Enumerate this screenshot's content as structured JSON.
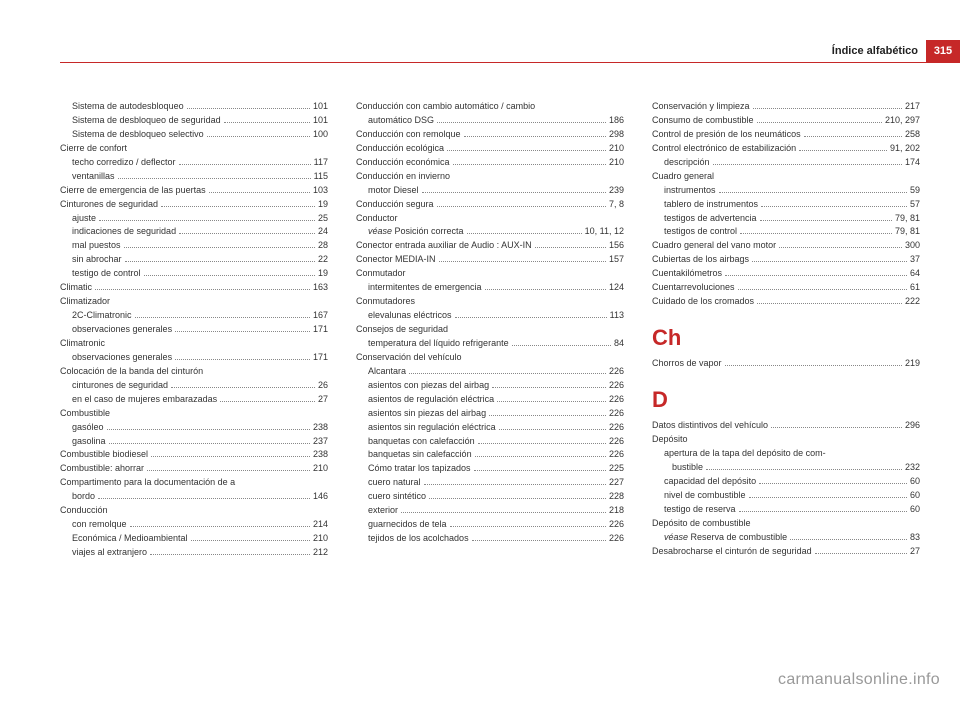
{
  "header": {
    "title": "Índice alfabético",
    "page_number": "315"
  },
  "watermark": "carmanualsonline.info",
  "colors": {
    "accent": "#c62828",
    "text": "#333333",
    "muted": "#999999",
    "background": "#ffffff"
  },
  "columns": [
    {
      "items": [
        {
          "t": "sub",
          "label": "Sistema de autodesbloqueo",
          "page": "101"
        },
        {
          "t": "sub",
          "label": "Sistema de desbloqueo de seguridad",
          "page": "101"
        },
        {
          "t": "sub",
          "label": "Sistema de desbloqueo selectivo",
          "page": "100"
        },
        {
          "t": "top",
          "label": "Cierre de confort"
        },
        {
          "t": "sub",
          "label": "techo corredizo / deflector",
          "page": "117"
        },
        {
          "t": "sub",
          "label": "ventanillas",
          "page": "115"
        },
        {
          "t": "top",
          "label": "Cierre de emergencia de las puertas",
          "page": "103"
        },
        {
          "t": "top",
          "label": "Cinturones de seguridad",
          "page": "19"
        },
        {
          "t": "sub",
          "label": "ajuste",
          "page": "25"
        },
        {
          "t": "sub",
          "label": "indicaciones de seguridad",
          "page": "24"
        },
        {
          "t": "sub",
          "label": "mal puestos",
          "page": "28"
        },
        {
          "t": "sub",
          "label": "sin abrochar",
          "page": "22"
        },
        {
          "t": "sub",
          "label": "testigo de control",
          "page": "19"
        },
        {
          "t": "top",
          "label": "Climatic",
          "page": "163"
        },
        {
          "t": "top",
          "label": "Climatizador"
        },
        {
          "t": "sub",
          "label": "2C-Climatronic",
          "page": "167"
        },
        {
          "t": "sub",
          "label": "observaciones generales",
          "page": "171"
        },
        {
          "t": "top",
          "label": "Climatronic"
        },
        {
          "t": "sub",
          "label": "observaciones generales",
          "page": "171"
        },
        {
          "t": "top",
          "label": "Colocación de la banda del cinturón"
        },
        {
          "t": "sub",
          "label": "cinturones de seguridad",
          "page": "26"
        },
        {
          "t": "sub",
          "label": "en el caso de mujeres embarazadas",
          "page": "27"
        },
        {
          "t": "top",
          "label": "Combustible"
        },
        {
          "t": "sub",
          "label": "gasóleo",
          "page": "238"
        },
        {
          "t": "sub",
          "label": "gasolina",
          "page": "237"
        },
        {
          "t": "top",
          "label": "Combustible biodiesel",
          "page": "238"
        },
        {
          "t": "top",
          "label": "Combustible: ahorrar",
          "page": "210"
        },
        {
          "t": "top",
          "label": "Compartimento para la documentación de a"
        },
        {
          "t": "sub",
          "label": "bordo",
          "page": "146",
          "cont": true
        },
        {
          "t": "top",
          "label": "Conducción"
        },
        {
          "t": "sub",
          "label": "con remolque",
          "page": "214"
        },
        {
          "t": "sub",
          "label": "Económica / Medioambiental",
          "page": "210"
        },
        {
          "t": "sub",
          "label": "viajes al extranjero",
          "page": "212"
        }
      ]
    },
    {
      "items": [
        {
          "t": "top",
          "label": "Conducción con cambio automático / cambio"
        },
        {
          "t": "sub",
          "label": "automático DSG",
          "page": "186",
          "cont": true
        },
        {
          "t": "top",
          "label": "Conducción con remolque",
          "page": "298"
        },
        {
          "t": "top",
          "label": "Conducción ecológica",
          "page": "210"
        },
        {
          "t": "top",
          "label": "Conducción económica",
          "page": "210"
        },
        {
          "t": "top",
          "label": "Conducción en invierno"
        },
        {
          "t": "sub",
          "label": "motor Diesel",
          "page": "239"
        },
        {
          "t": "top",
          "label": "Conducción segura",
          "page": "7, 8"
        },
        {
          "t": "top",
          "label": "Conductor"
        },
        {
          "t": "sub",
          "label_html": "<span class='italic'>véase</span> Posición correcta",
          "page": "10, 11, 12"
        },
        {
          "t": "top",
          "label": "Conector entrada auxiliar de Audio : AUX-IN",
          "page": "156"
        },
        {
          "t": "top",
          "label": "Conector MEDIA-IN",
          "page": "157"
        },
        {
          "t": "top",
          "label": "Conmutador"
        },
        {
          "t": "sub",
          "label": "intermitentes de emergencia",
          "page": "124"
        },
        {
          "t": "top",
          "label": "Conmutadores"
        },
        {
          "t": "sub",
          "label": "elevalunas eléctricos",
          "page": "113"
        },
        {
          "t": "top",
          "label": "Consejos de seguridad"
        },
        {
          "t": "sub",
          "label": "temperatura del líquido refrigerante",
          "page": "84"
        },
        {
          "t": "top",
          "label": "Conservación del vehículo"
        },
        {
          "t": "sub",
          "label": "Alcantara",
          "page": "226"
        },
        {
          "t": "sub",
          "label": "asientos con piezas del airbag",
          "page": "226"
        },
        {
          "t": "sub",
          "label": "asientos de regulación eléctrica",
          "page": "226"
        },
        {
          "t": "sub",
          "label": "asientos sin piezas del airbag",
          "page": "226"
        },
        {
          "t": "sub",
          "label": "asientos sin regulación eléctrica",
          "page": "226"
        },
        {
          "t": "sub",
          "label": "banquetas con calefacción",
          "page": "226"
        },
        {
          "t": "sub",
          "label": "banquetas sin calefacción",
          "page": "226"
        },
        {
          "t": "sub",
          "label": "Cómo tratar los tapizados",
          "page": "225"
        },
        {
          "t": "sub",
          "label": "cuero natural",
          "page": "227"
        },
        {
          "t": "sub",
          "label": "cuero sintético",
          "page": "228"
        },
        {
          "t": "sub",
          "label": "exterior",
          "page": "218"
        },
        {
          "t": "sub",
          "label": "guarnecidos de tela",
          "page": "226"
        },
        {
          "t": "sub",
          "label": "tejidos de los acolchados",
          "page": "226"
        }
      ]
    },
    {
      "items": [
        {
          "t": "top",
          "label": "Conservación y limpieza",
          "page": "217"
        },
        {
          "t": "top",
          "label": "Consumo de combustible",
          "page": "210, 297"
        },
        {
          "t": "top",
          "label": "Control de presión de los neumáticos",
          "page": "258"
        },
        {
          "t": "top",
          "label": "Control electrónico de estabilización",
          "page": "91, 202"
        },
        {
          "t": "sub",
          "label": "descripción",
          "page": "174"
        },
        {
          "t": "top",
          "label": "Cuadro general"
        },
        {
          "t": "sub",
          "label": "instrumentos",
          "page": "59"
        },
        {
          "t": "sub",
          "label": "tablero de instrumentos",
          "page": "57"
        },
        {
          "t": "sub",
          "label": "testigos de advertencia",
          "page": "79, 81"
        },
        {
          "t": "sub",
          "label": "testigos de control",
          "page": "79, 81"
        },
        {
          "t": "top",
          "label": "Cuadro general del vano motor",
          "page": "300"
        },
        {
          "t": "top",
          "label": "Cubiertas de los airbags",
          "page": "37"
        },
        {
          "t": "top",
          "label": "Cuentakilómetros",
          "page": "64"
        },
        {
          "t": "top",
          "label": "Cuentarrevoluciones",
          "page": "61"
        },
        {
          "t": "top",
          "label": "Cuidado de los cromados",
          "page": "222"
        },
        {
          "t": "section",
          "letter": "Ch"
        },
        {
          "t": "top",
          "label": "Chorros de vapor",
          "page": "219"
        },
        {
          "t": "section",
          "letter": "D"
        },
        {
          "t": "top",
          "label": "Datos distintivos del vehículo",
          "page": "296"
        },
        {
          "t": "top",
          "label": "Depósito"
        },
        {
          "t": "sub",
          "label": "apertura de la tapa del depósito de com-"
        },
        {
          "t": "subcont",
          "label": "bustible",
          "page": "232"
        },
        {
          "t": "sub",
          "label": "capacidad del depósito",
          "page": "60"
        },
        {
          "t": "sub",
          "label": "nivel de combustible",
          "page": "60"
        },
        {
          "t": "sub",
          "label": "testigo de reserva",
          "page": "60"
        },
        {
          "t": "top",
          "label": "Depósito de combustible"
        },
        {
          "t": "sub",
          "label_html": "<span class='italic'>véase</span> Reserva de combustible",
          "page": "83"
        },
        {
          "t": "top",
          "label": "Desabrocharse el cinturón de seguridad",
          "page": "27"
        }
      ]
    }
  ]
}
